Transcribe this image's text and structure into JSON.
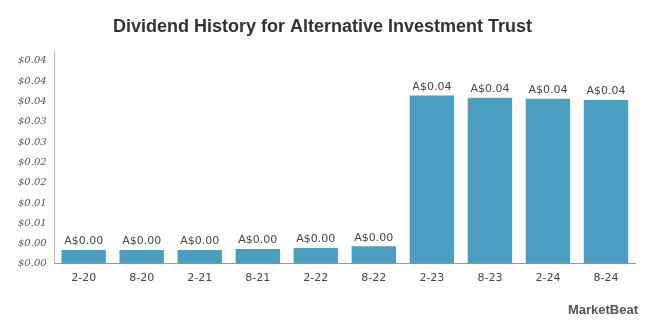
{
  "chart_data": {
    "type": "bar",
    "title": "Dividend History for Alternative Investment Trust",
    "categories": [
      "2-20",
      "8-20",
      "2-21",
      "8-21",
      "2-22",
      "8-22",
      "2-23",
      "8-23",
      "2-24",
      "8-24"
    ],
    "values": [
      0.003,
      0.003,
      0.003,
      0.0032,
      0.0034,
      0.0038,
      0.0365,
      0.036,
      0.0358,
      0.0355
    ],
    "value_labels": [
      "A$0.00",
      "A$0.00",
      "A$0.00",
      "A$0.00",
      "A$0.00",
      "A$0.00",
      "A$0.04",
      "A$0.04",
      "A$0.04",
      "A$0.04"
    ],
    "data_labels": true,
    "color": "#4a9fc0",
    "ylim": [
      0,
      0.046
    ],
    "yticks": [
      {
        "value": 0,
        "label": "$0.00"
      },
      {
        "value": 0.0044,
        "label": "$0.00"
      },
      {
        "value": 0.0088,
        "label": "$0.01"
      },
      {
        "value": 0.0132,
        "label": "$0.01"
      },
      {
        "value": 0.0176,
        "label": "$0.02"
      },
      {
        "value": 0.022,
        "label": "$0.02"
      },
      {
        "value": 0.0264,
        "label": "$0.03"
      },
      {
        "value": 0.0308,
        "label": "$0.03"
      },
      {
        "value": 0.0352,
        "label": "$0.04"
      },
      {
        "value": 0.0396,
        "label": "$0.04"
      },
      {
        "value": 0.044,
        "label": "$0.04"
      }
    ],
    "grid": false,
    "annotations": [
      "MarketBeat"
    ]
  }
}
